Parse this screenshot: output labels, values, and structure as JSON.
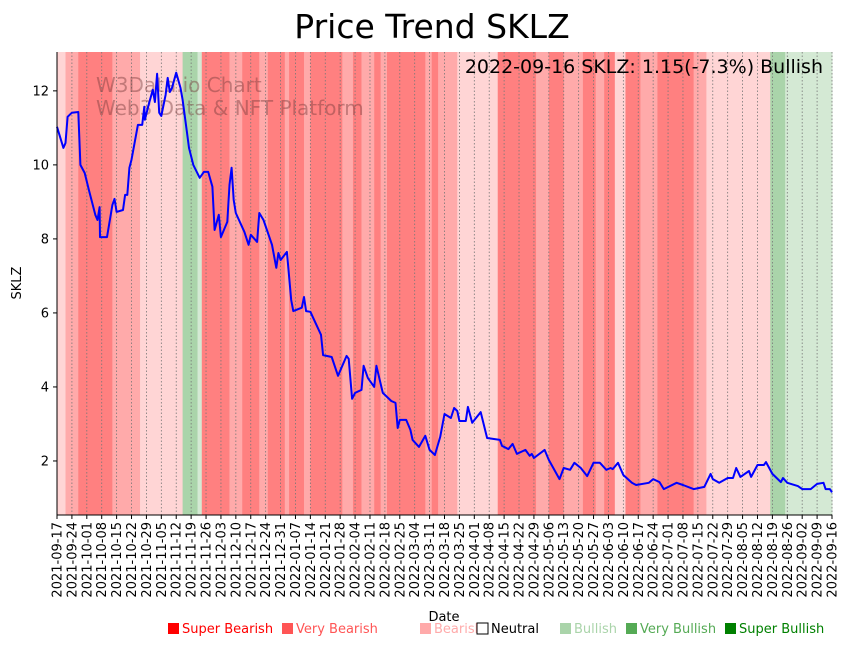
{
  "chart_data": {
    "type": "line",
    "title": "Price Trend SKLZ",
    "xlabel": "Date",
    "ylabel": "SKLZ",
    "annotation": "2022-09-16 SKLZ: 1.15(-7.3%) Bullish",
    "watermark": [
      "W3Data.io Chart",
      "Web3 Data & NFT Platform"
    ],
    "x_start_date": "2021-09-17",
    "x_range_days": [
      0,
      364
    ],
    "ylim": [
      0.54,
      13.05
    ],
    "yticks": [
      2,
      4,
      6,
      8,
      10,
      12
    ],
    "xtick_labels": [
      "2021-09-17",
      "2021-09-24",
      "2021-10-01",
      "2021-10-08",
      "2021-10-15",
      "2021-10-22",
      "2021-10-29",
      "2021-11-05",
      "2021-11-12",
      "2021-11-19",
      "2021-11-26",
      "2021-12-03",
      "2021-12-10",
      "2021-12-17",
      "2021-12-24",
      "2021-12-31",
      "2022-01-07",
      "2022-01-14",
      "2022-01-21",
      "2022-01-28",
      "2022-02-04",
      "2022-02-11",
      "2022-02-18",
      "2022-02-25",
      "2022-03-04",
      "2022-03-11",
      "2022-03-18",
      "2022-03-25",
      "2022-04-01",
      "2022-04-08",
      "2022-04-15",
      "2022-04-22",
      "2022-04-29",
      "2022-05-06",
      "2022-05-13",
      "2022-05-20",
      "2022-05-27",
      "2022-06-03",
      "2022-06-10",
      "2022-06-17",
      "2022-06-24",
      "2022-07-01",
      "2022-07-08",
      "2022-07-15",
      "2022-07-22",
      "2022-07-29",
      "2022-08-05",
      "2022-08-12",
      "2022-08-19",
      "2022-08-26",
      "2022-09-02",
      "2022-09-09",
      "2022-09-16"
    ],
    "xtick_step_days": 7,
    "grid": "vertical dotted",
    "line_color": "#0000ff",
    "series": [
      {
        "name": "SKLZ",
        "points": [
          [
            0,
            11.03
          ],
          [
            3,
            10.46
          ],
          [
            4,
            10.59
          ],
          [
            5,
            11.3
          ],
          [
            7,
            11.41
          ],
          [
            10,
            11.43
          ],
          [
            11,
            10.0
          ],
          [
            13,
            9.78
          ],
          [
            15,
            9.32
          ],
          [
            18,
            8.65
          ],
          [
            19,
            8.51
          ],
          [
            20,
            8.86
          ],
          [
            20.2,
            8.05
          ],
          [
            23.5,
            8.05
          ],
          [
            26,
            8.92
          ],
          [
            27,
            9.08
          ],
          [
            28,
            8.73
          ],
          [
            31,
            8.78
          ],
          [
            32,
            9.19
          ],
          [
            33,
            9.19
          ],
          [
            34,
            9.92
          ],
          [
            35,
            10.14
          ],
          [
            38,
            11.08
          ],
          [
            40,
            11.08
          ],
          [
            41,
            11.57
          ],
          [
            41.3,
            11.22
          ],
          [
            43,
            11.62
          ],
          [
            45,
            12.03
          ],
          [
            46,
            11.7
          ],
          [
            47,
            12.46
          ],
          [
            48,
            11.41
          ],
          [
            49,
            11.32
          ],
          [
            51,
            11.89
          ],
          [
            52,
            12.35
          ],
          [
            53,
            11.97
          ],
          [
            54,
            12.08
          ],
          [
            56,
            12.49
          ],
          [
            58,
            12.08
          ],
          [
            59,
            11.76
          ],
          [
            61,
            10.89
          ],
          [
            62,
            10.46
          ],
          [
            64,
            10.0
          ],
          [
            67,
            9.65
          ],
          [
            69,
            9.81
          ],
          [
            71,
            9.81
          ],
          [
            73,
            9.41
          ],
          [
            74,
            8.24
          ],
          [
            76,
            8.65
          ],
          [
            77,
            8.05
          ],
          [
            80,
            8.46
          ],
          [
            81,
            9.46
          ],
          [
            82,
            9.92
          ],
          [
            83,
            9.05
          ],
          [
            84,
            8.7
          ],
          [
            88,
            8.19
          ],
          [
            90,
            7.84
          ],
          [
            91,
            8.11
          ],
          [
            94,
            7.92
          ],
          [
            95,
            8.7
          ],
          [
            97,
            8.51
          ],
          [
            101,
            7.84
          ],
          [
            103,
            7.22
          ],
          [
            104,
            7.62
          ],
          [
            105,
            7.43
          ],
          [
            108,
            7.65
          ],
          [
            110,
            6.35
          ],
          [
            111,
            6.05
          ],
          [
            115,
            6.14
          ],
          [
            116,
            6.43
          ],
          [
            117,
            6.05
          ],
          [
            119,
            6.03
          ],
          [
            124,
            5.41
          ],
          [
            125,
            4.86
          ],
          [
            129,
            4.81
          ],
          [
            132,
            4.3
          ],
          [
            136,
            4.84
          ],
          [
            137,
            4.76
          ],
          [
            138.6,
            3.68
          ],
          [
            140,
            3.84
          ],
          [
            143,
            3.92
          ],
          [
            144,
            4.57
          ],
          [
            146,
            4.24
          ],
          [
            149,
            4.0
          ],
          [
            150,
            4.57
          ],
          [
            153,
            3.84
          ],
          [
            157,
            3.62
          ],
          [
            159,
            3.57
          ],
          [
            160,
            2.89
          ],
          [
            161,
            3.11
          ],
          [
            164,
            3.11
          ],
          [
            166,
            2.84
          ],
          [
            167,
            2.57
          ],
          [
            170,
            2.38
          ],
          [
            173,
            2.68
          ],
          [
            175,
            2.3
          ],
          [
            177.5,
            2.16
          ],
          [
            180,
            2.65
          ],
          [
            182,
            3.27
          ],
          [
            185,
            3.16
          ],
          [
            186.5,
            3.43
          ],
          [
            188,
            3.35
          ],
          [
            189,
            3.08
          ],
          [
            192,
            3.08
          ],
          [
            193,
            3.46
          ],
          [
            195,
            3.03
          ],
          [
            199,
            3.32
          ],
          [
            202,
            2.62
          ],
          [
            208,
            2.57
          ],
          [
            209,
            2.41
          ],
          [
            212,
            2.32
          ],
          [
            214,
            2.46
          ],
          [
            216,
            2.19
          ],
          [
            220,
            2.3
          ],
          [
            222,
            2.14
          ],
          [
            223,
            2.19
          ],
          [
            224,
            2.08
          ],
          [
            229,
            2.3
          ],
          [
            231,
            2.03
          ],
          [
            236,
            1.51
          ],
          [
            238,
            1.81
          ],
          [
            241,
            1.76
          ],
          [
            243,
            1.95
          ],
          [
            246,
            1.81
          ],
          [
            249,
            1.59
          ],
          [
            252,
            1.95
          ],
          [
            255,
            1.95
          ],
          [
            258,
            1.76
          ],
          [
            260,
            1.81
          ],
          [
            261,
            1.78
          ],
          [
            263.5,
            1.95
          ],
          [
            266,
            1.62
          ],
          [
            270,
            1.41
          ],
          [
            272,
            1.35
          ],
          [
            278,
            1.41
          ],
          [
            280,
            1.51
          ],
          [
            283,
            1.43
          ],
          [
            285,
            1.24
          ],
          [
            291,
            1.41
          ],
          [
            294,
            1.35
          ],
          [
            299,
            1.24
          ],
          [
            304,
            1.3
          ],
          [
            307,
            1.65
          ],
          [
            308,
            1.51
          ],
          [
            311,
            1.41
          ],
          [
            315,
            1.54
          ],
          [
            317.5,
            1.54
          ],
          [
            319,
            1.81
          ],
          [
            321,
            1.57
          ],
          [
            325,
            1.73
          ],
          [
            326,
            1.57
          ],
          [
            329,
            1.89
          ],
          [
            332,
            1.89
          ],
          [
            333,
            1.97
          ],
          [
            336,
            1.65
          ],
          [
            340,
            1.43
          ],
          [
            341,
            1.54
          ],
          [
            343,
            1.41
          ],
          [
            348,
            1.32
          ],
          [
            350,
            1.24
          ],
          [
            354,
            1.24
          ],
          [
            357,
            1.38
          ],
          [
            360,
            1.41
          ],
          [
            361,
            1.24
          ],
          [
            363,
            1.24
          ],
          [
            364,
            1.15
          ]
        ]
      }
    ],
    "sentiment_bands": [
      [
        0,
        4,
        "Bearish"
      ],
      [
        4,
        10,
        "Very Bearish"
      ],
      [
        10,
        26,
        "Super Bearish"
      ],
      [
        26,
        39,
        "Very Bearish"
      ],
      [
        39,
        59,
        "Bearish"
      ],
      [
        59,
        66,
        "Very Bullish"
      ],
      [
        66,
        68,
        "Bullish"
      ],
      [
        68,
        81,
        "Super Bearish"
      ],
      [
        81,
        87,
        "Very Bearish"
      ],
      [
        87,
        95,
        "Super Bearish"
      ],
      [
        95,
        99,
        "Very Bearish"
      ],
      [
        99,
        107,
        "Super Bearish"
      ],
      [
        107,
        109,
        "Very Bearish"
      ],
      [
        109,
        116,
        "Super Bearish"
      ],
      [
        116,
        119,
        "Very Bearish"
      ],
      [
        119,
        134,
        "Super Bearish"
      ],
      [
        134,
        139,
        "Very Bearish"
      ],
      [
        139,
        143,
        "Super Bearish"
      ],
      [
        143,
        149,
        "Very Bearish"
      ],
      [
        149,
        152,
        "Super Bearish"
      ],
      [
        152,
        155,
        "Very Bearish"
      ],
      [
        155,
        173,
        "Super Bearish"
      ],
      [
        173,
        176,
        "Very Bearish"
      ],
      [
        176,
        179,
        "Super Bearish"
      ],
      [
        179,
        188,
        "Very Bearish"
      ],
      [
        188,
        207,
        "Bearish"
      ],
      [
        207,
        225,
        "Super Bearish"
      ],
      [
        225,
        231,
        "Very Bearish"
      ],
      [
        231,
        238,
        "Super Bearish"
      ],
      [
        238,
        247,
        "Very Bearish"
      ],
      [
        247,
        253,
        "Super Bearish"
      ],
      [
        253,
        257,
        "Very Bearish"
      ],
      [
        257,
        262,
        "Super Bearish"
      ],
      [
        262,
        267,
        "Bearish"
      ],
      [
        267,
        274,
        "Super Bearish"
      ],
      [
        274,
        282,
        "Very Bearish"
      ],
      [
        282,
        299,
        "Super Bearish"
      ],
      [
        299,
        305,
        "Very Bearish"
      ],
      [
        305,
        335,
        "Bearish"
      ],
      [
        335,
        342,
        "Very Bullish"
      ],
      [
        342,
        364,
        "Bullish"
      ]
    ],
    "legend": {
      "placement": "bottom-right",
      "entries": [
        {
          "label": "Super Bearish",
          "color": "#ff0000",
          "band": "#ff8080"
        },
        {
          "label": "Very Bearish",
          "color": "#ff5555",
          "band": "#ffaaaa"
        },
        {
          "label": "Bearish",
          "color": "#ffaaaa",
          "band": "#ffd5d5"
        },
        {
          "label": "Neutral",
          "color": "#000000",
          "band": "#ffffff"
        },
        {
          "label": "Bullish",
          "color": "#aad4aa",
          "band": "#d4e9d4"
        },
        {
          "label": "Very Bullish",
          "color": "#55aa55",
          "band": "#aad4aa"
        },
        {
          "label": "Super Bullish",
          "color": "#008000",
          "band": "#80c080"
        }
      ]
    }
  }
}
